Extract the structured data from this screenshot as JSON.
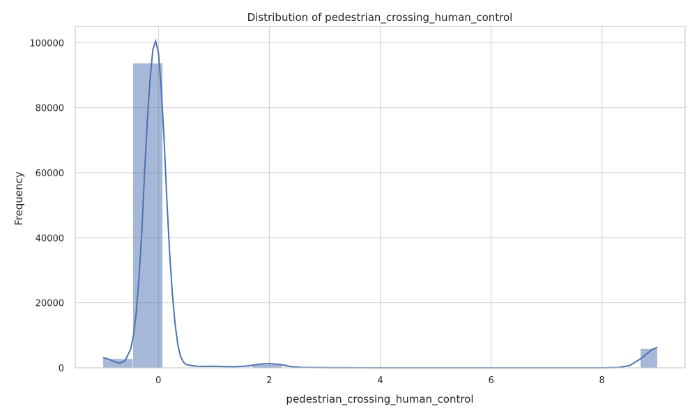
{
  "chart_data": {
    "type": "bar",
    "title": "Distribution of pedestrian_crossing_human_control",
    "xlabel": "pedestrian_crossing_human_control",
    "ylabel": "Frequency",
    "xlim": [
      -1.5,
      9.5
    ],
    "ylim": [
      0,
      105000
    ],
    "xticks": [
      0,
      2,
      4,
      6,
      8
    ],
    "yticks": [
      0,
      20000,
      40000,
      60000,
      80000,
      100000
    ],
    "grid": true,
    "bin_edges": [
      -1.0,
      -0.4615,
      0.0769,
      0.6154,
      1.1538,
      1.6923,
      2.2308,
      2.7692,
      3.3077,
      3.8462,
      4.3846,
      4.9231,
      5.4615,
      6.0,
      6.5385,
      7.0769,
      7.6154,
      8.1538,
      8.6923,
      9.0
    ],
    "bar_values": [
      2800,
      93700,
      0,
      0,
      0,
      1000,
      0,
      0,
      0,
      0,
      0,
      0,
      0,
      0,
      0,
      0,
      0,
      0,
      5900
    ],
    "kde": {
      "x": [
        -1.0,
        -0.9,
        -0.8,
        -0.7,
        -0.6,
        -0.5,
        -0.45,
        -0.4,
        -0.35,
        -0.3,
        -0.25,
        -0.2,
        -0.15,
        -0.1,
        -0.05,
        0.0,
        0.05,
        0.1,
        0.15,
        0.2,
        0.25,
        0.3,
        0.35,
        0.4,
        0.45,
        0.5,
        0.6,
        0.7,
        0.8,
        1.0,
        1.2,
        1.4,
        1.6,
        1.8,
        2.0,
        2.2,
        2.4,
        2.6,
        3.0,
        4.0,
        5.0,
        6.0,
        7.0,
        8.0,
        8.3,
        8.5,
        8.7,
        8.9,
        9.0
      ],
      "y": [
        3100,
        2700,
        1900,
        1400,
        2200,
        5800,
        10000,
        17000,
        28000,
        42000,
        60000,
        76000,
        89000,
        98000,
        100500,
        97000,
        86000,
        71000,
        52000,
        36000,
        23000,
        13500,
        7000,
        3500,
        1800,
        1000,
        700,
        500,
        450,
        500,
        380,
        350,
        550,
        1100,
        1300,
        1000,
        350,
        120,
        40,
        0,
        0,
        0,
        0,
        0,
        100,
        700,
        2800,
        5600,
        6300
      ]
    }
  }
}
